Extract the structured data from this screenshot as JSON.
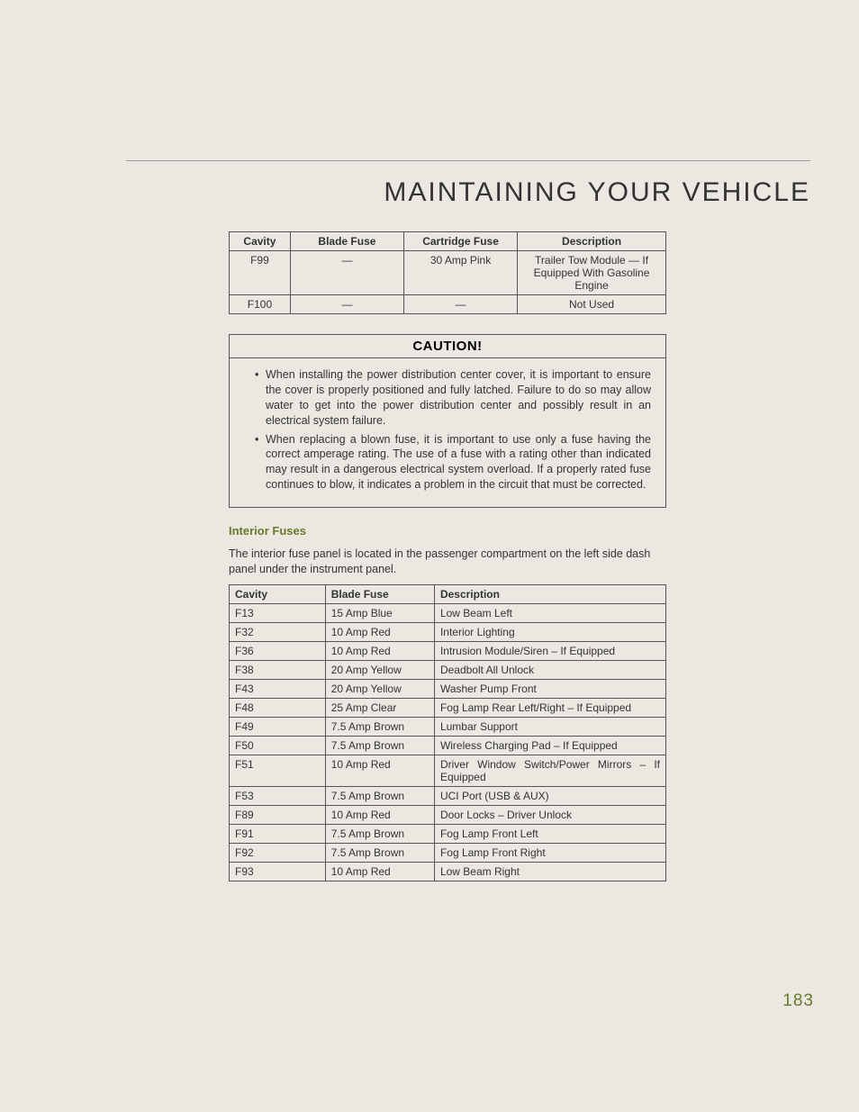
{
  "page": {
    "title": "MAINTAINING YOUR VEHICLE",
    "number": "183",
    "colors": {
      "background": "#ebe8e2",
      "accent": "#6a7a2a",
      "text": "#333333",
      "border": "#555555"
    }
  },
  "table1": {
    "headers": [
      "Cavity",
      "Blade Fuse",
      "Cartridge Fuse",
      "Description"
    ],
    "col_widths": [
      "14%",
      "26%",
      "26%",
      "34%"
    ],
    "rows": [
      {
        "cavity": "F99",
        "blade": "—",
        "cartridge": "30 Amp Pink",
        "desc": "Trailer Tow Module — If Equipped With Gasoline Engine"
      },
      {
        "cavity": "F100",
        "blade": "—",
        "cartridge": "—",
        "desc": "Not Used"
      }
    ]
  },
  "caution": {
    "title": "CAUTION!",
    "items": [
      "When installing the power distribution center cover, it is important to ensure the cover is properly positioned and fully latched. Failure to do so may allow water to get into the power distribution center and possibly result in an electrical system failure.",
      "When replacing a blown fuse, it is important to use only a fuse having the correct amperage rating. The use of a fuse with a rating other than indicated may result in a dangerous electrical system overload. If a properly rated fuse continues to blow, it indicates a problem in the circuit that must be corrected."
    ]
  },
  "interior": {
    "heading": "Interior Fuses",
    "intro": "The interior fuse panel is located in the passenger compartment on the left side dash panel under the instrument panel."
  },
  "table2": {
    "headers": [
      "Cavity",
      "Blade Fuse",
      "Description"
    ],
    "col_widths": [
      "22%",
      "25%",
      "53%"
    ],
    "rows": [
      {
        "cavity": "F13",
        "blade": "15 Amp Blue",
        "desc": "Low Beam Left"
      },
      {
        "cavity": "F32",
        "blade": "10 Amp Red",
        "desc": "Interior Lighting"
      },
      {
        "cavity": "F36",
        "blade": "10 Amp Red",
        "desc": "Intrusion Module/Siren – If Equipped"
      },
      {
        "cavity": "F38",
        "blade": "20 Amp Yellow",
        "desc": "Deadbolt All Unlock"
      },
      {
        "cavity": "F43",
        "blade": "20 Amp Yellow",
        "desc": "Washer Pump Front"
      },
      {
        "cavity": "F48",
        "blade": "25 Amp Clear",
        "desc": "Fog Lamp Rear Left/Right – If Equipped"
      },
      {
        "cavity": "F49",
        "blade": "7.5 Amp Brown",
        "desc": "Lumbar Support"
      },
      {
        "cavity": "F50",
        "blade": "7.5 Amp Brown",
        "desc": "Wireless Charging Pad – If Equipped"
      },
      {
        "cavity": "F51",
        "blade": "10 Amp Red",
        "desc": "Driver Window Switch/Power Mirrors – If Equipped",
        "justify": true
      },
      {
        "cavity": "F53",
        "blade": "7.5 Amp Brown",
        "desc": "UCI Port (USB & AUX)"
      },
      {
        "cavity": "F89",
        "blade": "10 Amp Red",
        "desc": "Door Locks – Driver Unlock"
      },
      {
        "cavity": "F91",
        "blade": "7.5 Amp Brown",
        "desc": "Fog Lamp Front Left"
      },
      {
        "cavity": "F92",
        "blade": "7.5 Amp Brown",
        "desc": "Fog Lamp Front Right"
      },
      {
        "cavity": "F93",
        "blade": "10 Amp Red",
        "desc": "Low Beam Right"
      }
    ]
  }
}
